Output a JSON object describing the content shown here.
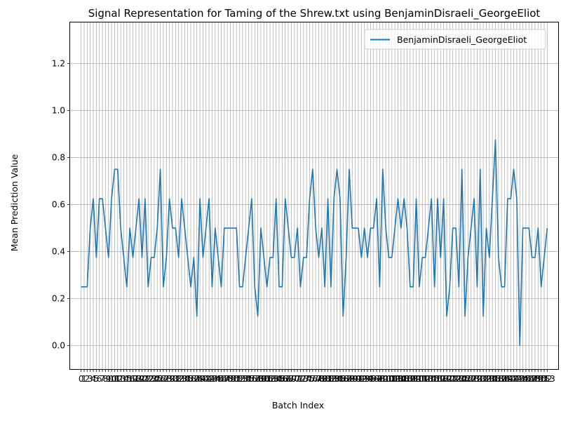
{
  "chart_data": {
    "type": "line",
    "title": "Signal Representation for Taming of the Shrew.txt using BenjaminDisraeli_GeorgeEliot",
    "xlabel": "Batch Index",
    "ylabel": "Mean Prediction Value",
    "xlim": [
      -3.6,
      156.6
    ],
    "ylim": [
      -0.1,
      1.375
    ],
    "yticks": [
      0.0,
      0.2,
      0.4,
      0.6,
      0.8,
      1.0,
      1.2
    ],
    "ytick_labels": [
      "0.0",
      "0.2",
      "0.4",
      "0.6",
      "0.8",
      "1.0",
      "1.2"
    ],
    "xticks_start": 0,
    "xticks_end": 153,
    "grid": true,
    "legend_position": "top-right",
    "line_color": "#1f77b4",
    "series": [
      {
        "name": "BenjaminDisraeli_GeorgeEliot",
        "x": [
          0,
          1,
          2,
          3,
          4,
          5,
          6,
          7,
          8,
          9,
          10,
          11,
          12,
          13,
          14,
          15,
          16,
          17,
          18,
          19,
          20,
          21,
          22,
          23,
          24,
          25,
          26,
          27,
          28,
          29,
          30,
          31,
          32,
          33,
          34,
          35,
          36,
          37,
          38,
          39,
          40,
          41,
          42,
          43,
          44,
          45,
          46,
          47,
          48,
          49,
          50,
          51,
          52,
          53,
          54,
          55,
          56,
          57,
          58,
          59,
          60,
          61,
          62,
          63,
          64,
          65,
          66,
          67,
          68,
          69,
          70,
          71,
          72,
          73,
          74,
          75,
          76,
          77,
          78,
          79,
          80,
          81,
          82,
          83,
          84,
          85,
          86,
          87,
          88,
          89,
          90,
          91,
          92,
          93,
          94,
          95,
          96,
          97,
          98,
          99,
          100,
          101,
          102,
          103,
          104,
          105,
          106,
          107,
          108,
          109,
          110,
          111,
          112,
          113,
          114,
          115,
          116,
          117,
          118,
          119,
          120,
          121,
          122,
          123,
          124,
          125,
          126,
          127,
          128,
          129,
          130,
          131,
          132,
          133,
          134,
          135,
          136,
          137,
          138,
          139,
          140,
          141,
          142,
          143,
          144,
          145,
          146,
          147,
          148,
          149,
          150,
          151,
          152,
          153
        ],
        "values": [
          0.25,
          0.25,
          0.25,
          0.5,
          0.625,
          0.375,
          0.625,
          0.625,
          0.5,
          0.375,
          0.625,
          0.75,
          0.75,
          0.5,
          0.375,
          0.25,
          0.5,
          0.375,
          0.5,
          0.625,
          0.375,
          0.625,
          0.25,
          0.375,
          0.375,
          0.5,
          0.75,
          0.25,
          0.375,
          0.625,
          0.5,
          0.5,
          0.375,
          0.625,
          0.5,
          0.375,
          0.25,
          0.375,
          0.125,
          0.625,
          0.375,
          0.5,
          0.625,
          0.25,
          0.5,
          0.375,
          0.25,
          0.5,
          0.5,
          0.5,
          0.5,
          0.5,
          0.25,
          0.25,
          0.375,
          0.5,
          0.625,
          0.25,
          0.125,
          0.5,
          0.375,
          0.25,
          0.375,
          0.375,
          0.625,
          0.25,
          0.25,
          0.625,
          0.5,
          0.375,
          0.375,
          0.5,
          0.25,
          0.375,
          0.375,
          0.625,
          0.75,
          0.5,
          0.375,
          0.5,
          0.25,
          0.625,
          0.25,
          0.625,
          0.75,
          0.625,
          0.125,
          0.375,
          0.75,
          0.5,
          0.5,
          0.5,
          0.375,
          0.5,
          0.375,
          0.5,
          0.5,
          0.625,
          0.25,
          0.75,
          0.5,
          0.375,
          0.375,
          0.5,
          0.625,
          0.5,
          0.625,
          0.5,
          0.25,
          0.25,
          0.625,
          0.25,
          0.375,
          0.375,
          0.5,
          0.625,
          0.25,
          0.625,
          0.375,
          0.625,
          0.125,
          0.25,
          0.5,
          0.5,
          0.25,
          0.75,
          0.125,
          0.375,
          0.5,
          0.625,
          0.25,
          0.75,
          0.125,
          0.5,
          0.375,
          0.625,
          0.875,
          0.375,
          0.25,
          0.25,
          0.625,
          0.625,
          0.75,
          0.625,
          0.0,
          0.5,
          0.5,
          0.5,
          0.375,
          0.375,
          0.5,
          0.25,
          0.375,
          0.5
        ]
      }
    ]
  }
}
